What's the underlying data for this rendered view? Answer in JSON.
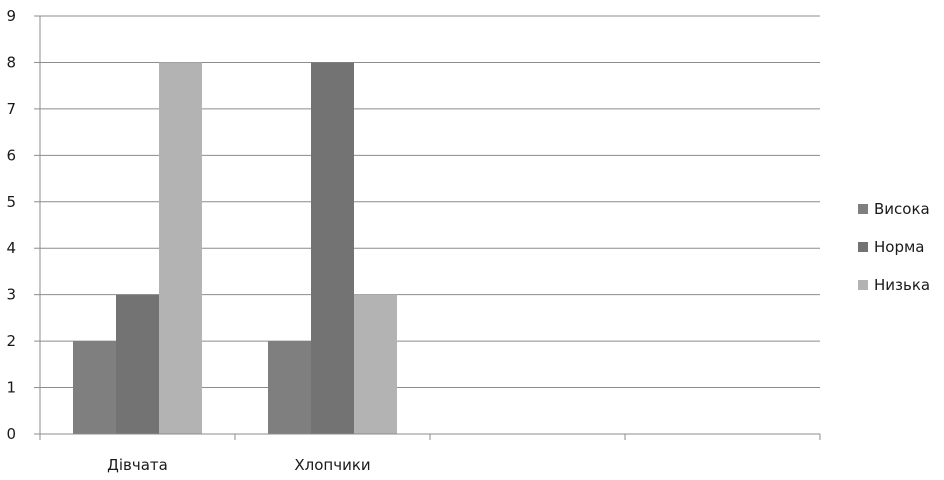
{
  "chart_data": {
    "type": "bar",
    "title": "",
    "xlabel": "",
    "ylabel": "",
    "ylim": [
      0,
      9
    ],
    "y_ticks": [
      "0",
      "1",
      "2",
      "3",
      "4",
      "5",
      "6",
      "7",
      "8",
      "9"
    ],
    "categories": [
      "Дівчата",
      "Хлопчики",
      "",
      ""
    ],
    "series": [
      {
        "name": "Висока",
        "color": "#7f7f7f",
        "values": [
          2,
          2,
          null,
          null
        ]
      },
      {
        "name": "Норма",
        "color": "#737373",
        "values": [
          3,
          8,
          null,
          null
        ]
      },
      {
        "name": "Низька",
        "color": "#b3b3b3",
        "values": [
          8,
          3,
          null,
          null
        ]
      }
    ],
    "grid": true,
    "legend_position": "right"
  }
}
